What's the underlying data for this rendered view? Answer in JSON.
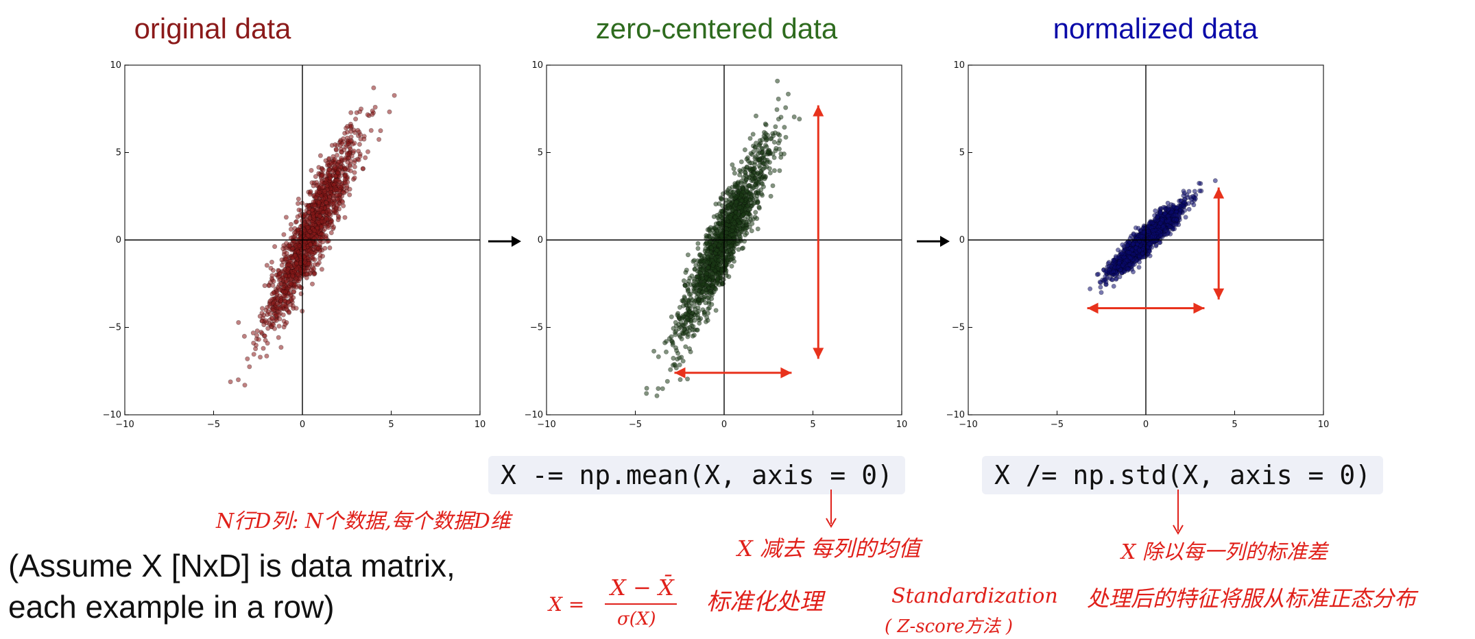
{
  "chart_data": [
    {
      "type": "scatter",
      "title": "original data",
      "title_color": "#8b1a1a",
      "point_color": "#8b1a1a",
      "xlim": [
        -10,
        10
      ],
      "ylim": [
        -10,
        10
      ],
      "xticks": [
        "−10",
        "−5",
        "0",
        "5",
        "10"
      ],
      "yticks": [
        "10",
        "5",
        "0",
        "−5",
        "−10"
      ],
      "mean": [
        0.5,
        0.5
      ],
      "std": [
        1.3,
        2.8
      ],
      "corr": 0.92,
      "n_points": 1500
    },
    {
      "type": "scatter",
      "title": "zero-centered data",
      "title_color": "#2e6b1e",
      "point_color": "#1c3a15",
      "xlim": [
        -10,
        10
      ],
      "ylim": [
        -10,
        10
      ],
      "xticks": [
        "−10",
        "−5",
        "0",
        "5",
        "10"
      ],
      "yticks": [
        "10",
        "5",
        "0",
        "−5",
        "−10"
      ],
      "mean": [
        0,
        0
      ],
      "std": [
        1.3,
        2.8
      ],
      "corr": 0.92,
      "n_points": 1500
    },
    {
      "type": "scatter",
      "title": "normalized data",
      "title_color": "#0a0aa8",
      "point_color": "#0a0a6e",
      "xlim": [
        -10,
        10
      ],
      "ylim": [
        -10,
        10
      ],
      "xticks": [
        "−10",
        "−5",
        "0",
        "5",
        "10"
      ],
      "yticks": [
        "10",
        "5",
        "0",
        "−5",
        "−10"
      ],
      "mean": [
        0,
        0
      ],
      "std": [
        1,
        1
      ],
      "corr": 0.92,
      "n_points": 1500
    }
  ],
  "code": {
    "zero_center": "X -= np.mean(X, axis = 0)",
    "normalize": "X /= np.std(X, axis = 0)"
  },
  "caption": {
    "line1": "(Assume X [NxD] is data matrix,",
    "line2": "each example in a row)"
  },
  "annotations": {
    "matrix_note": "N行D列: N个数据,每个数据D维",
    "mean_note": "X 减去 每列的均值",
    "std_note": "X 除以每一列的标准差",
    "formula_lhs": "X =",
    "formula_num": "X − X̄",
    "formula_den": "σ(X)",
    "standardize_cn": "标准化处理",
    "standardization": "Standardization",
    "zscore": "( Z-score方法 )",
    "std_normal_note": "处理后的特征将服从标准正态分布"
  },
  "colors": {
    "annotation": "#e0201a",
    "code_bg": "#eef0f7"
  }
}
